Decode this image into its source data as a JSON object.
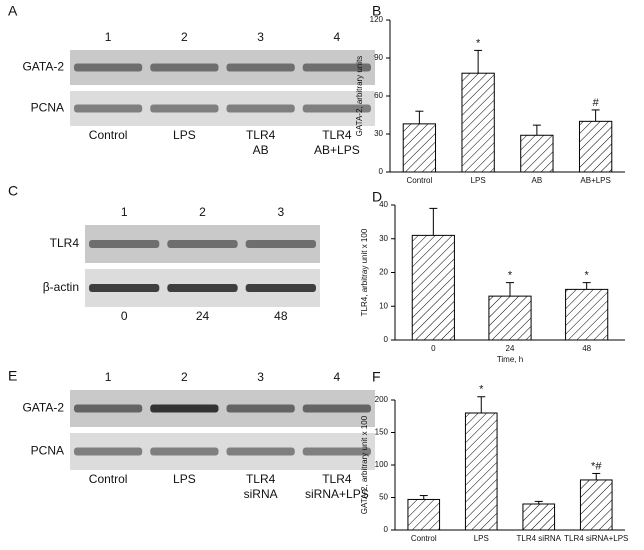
{
  "panel_labels": [
    "A",
    "B",
    "C",
    "D",
    "E",
    "F"
  ],
  "blots": [
    {
      "lanes": [
        "1",
        "2",
        "3",
        "4"
      ],
      "rows": [
        "GATA-2",
        "PCNA"
      ],
      "conditions": [
        [
          "Control"
        ],
        [
          "LPS"
        ],
        [
          "TLR4",
          "AB"
        ],
        [
          "TLR4",
          "AB+LPS"
        ]
      ]
    },
    {
      "lanes": [
        "1",
        "2",
        "3"
      ],
      "rows": [
        "TLR4",
        "β-actin"
      ],
      "conditions": [
        [
          "0"
        ],
        [
          "24"
        ],
        [
          "48"
        ]
      ]
    },
    {
      "lanes": [
        "1",
        "2",
        "3",
        "4"
      ],
      "rows": [
        "GATA-2",
        "PCNA"
      ],
      "conditions": [
        [
          "Control"
        ],
        [
          "LPS"
        ],
        [
          "TLR4",
          "siRNA"
        ],
        [
          "TLR4",
          "siRNA+LPS"
        ]
      ]
    }
  ],
  "chart_data": [
    {
      "type": "bar",
      "ylabel": "GATA-2, arbitrary units",
      "categories": [
        "Control",
        "LPS",
        "AB",
        "AB+LPS"
      ],
      "values": [
        38,
        78,
        29,
        40
      ],
      "errors": [
        10,
        18,
        8,
        9
      ],
      "markers": [
        null,
        "*",
        null,
        "#"
      ],
      "ylim": [
        0,
        120
      ],
      "yticks": [
        0,
        30,
        60,
        90,
        120
      ],
      "color": "#000000"
    },
    {
      "type": "bar",
      "ylabel": "TLR4, arbitray unit x 100",
      "xlabel": "Time, h",
      "categories": [
        "0",
        "24",
        "48"
      ],
      "values": [
        31,
        13,
        15
      ],
      "errors": [
        8,
        4,
        2
      ],
      "markers": [
        null,
        "*",
        "*"
      ],
      "ylim": [
        0,
        40
      ],
      "yticks": [
        0,
        10,
        20,
        30,
        40
      ],
      "color": "#000000"
    },
    {
      "type": "bar",
      "ylabel": "GATA-2, arbitrary unit x 100",
      "categories": [
        "Control",
        "LPS",
        "TLR4 siRNA",
        "TLR4 siRNA+LPS"
      ],
      "values": [
        47,
        180,
        40,
        77
      ],
      "errors": [
        6,
        25,
        4,
        10
      ],
      "markers": [
        null,
        "*",
        null,
        "*#"
      ],
      "ylim": [
        0,
        200
      ],
      "yticks": [
        0,
        50,
        100,
        150,
        200
      ],
      "color": "#000000"
    }
  ]
}
